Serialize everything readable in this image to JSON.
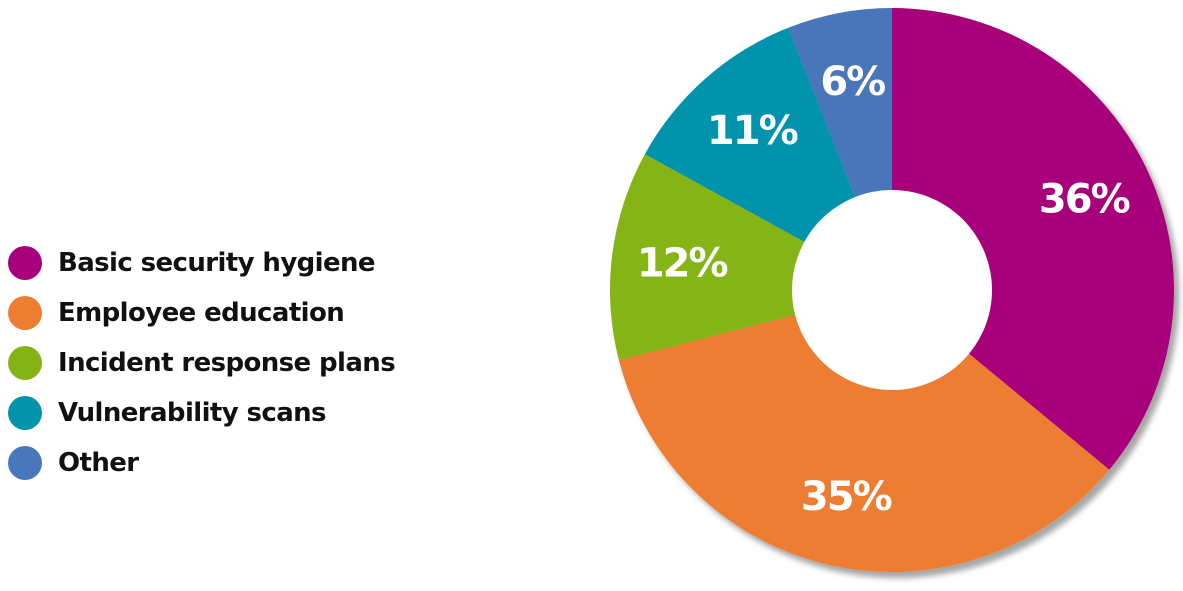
{
  "chart_data": {
    "type": "pie",
    "title": "",
    "categories": [
      "Basic security hygiene",
      "Employee education",
      "Incident response plans",
      "Vulnerability scans",
      "Other"
    ],
    "values": [
      36,
      35,
      12,
      11,
      6
    ],
    "data_labels": [
      "36%",
      "35%",
      "12%",
      "11%",
      "6%"
    ],
    "colors": [
      "#a8007a",
      "#ed7d31",
      "#84b414",
      "#0393ab",
      "#4a76bb"
    ],
    "donut": true,
    "legend_position": "left"
  }
}
